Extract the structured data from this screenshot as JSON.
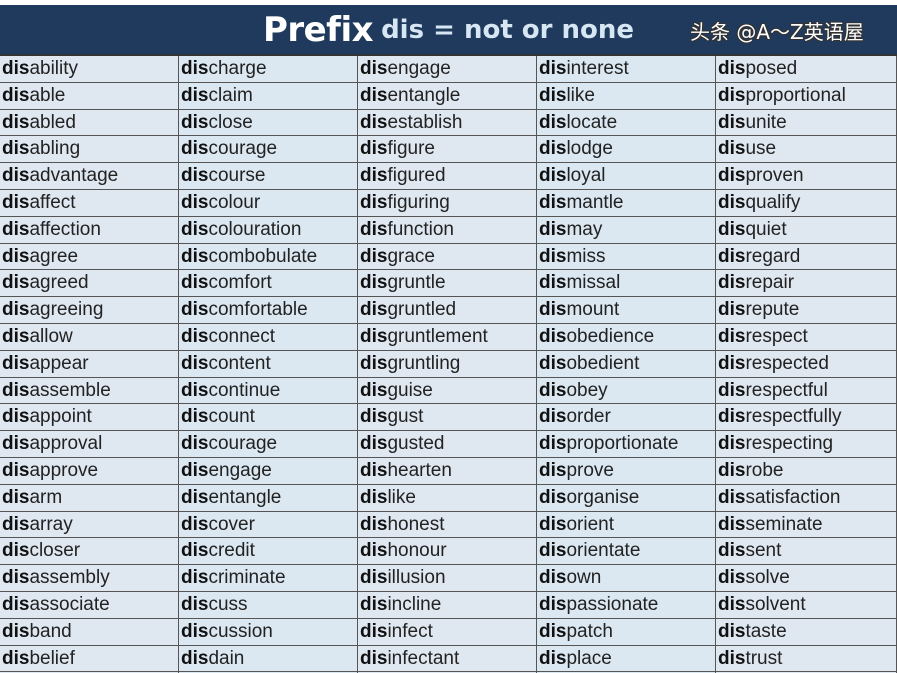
{
  "header": {
    "title_main": "Prefix",
    "title_sub": "dis = not or none"
  },
  "prefix": "dis",
  "columns": [
    [
      "ability",
      "able",
      "abled",
      "abling",
      "advantage",
      "affect",
      "affection",
      "agree",
      "agreed",
      "agreeing",
      "allow",
      "appear",
      "assemble",
      "appoint",
      "approval",
      "approve",
      "arm",
      "array",
      "closer",
      "assembly",
      "associate",
      "band",
      "belief"
    ],
    [
      "charge",
      "claim",
      "close",
      "courage",
      "course",
      "colour",
      "colouration",
      "combobulate",
      "comfort",
      "comfortable",
      "connect",
      "content",
      "continue",
      "count",
      "courage",
      "engage",
      "entangle",
      "cover",
      "credit",
      "criminate",
      "cuss",
      "cussion",
      "dain"
    ],
    [
      "engage",
      "entangle",
      "establish",
      "figure",
      "figured",
      "figuring",
      "function",
      "grace",
      "gruntle",
      "gruntled",
      "gruntlement",
      "gruntling",
      "guise",
      "gust",
      "gusted",
      "hearten",
      "like",
      "honest",
      "honour",
      "illusion",
      "incline",
      "infect",
      "infectant"
    ],
    [
      "interest",
      "like",
      "locate",
      "lodge",
      "loyal",
      "mantle",
      "may",
      "miss",
      "missal",
      "mount",
      "obedience",
      "obedient",
      "obey",
      "order",
      "proportionate",
      "prove",
      "organise",
      "orient",
      "orientate",
      "own",
      "passionate",
      "patch",
      "place"
    ],
    [
      "posed",
      "proportional",
      "unite",
      "use",
      "proven",
      "qualify",
      "quiet",
      "regard",
      "repair",
      "repute",
      "respect",
      "respected",
      "respectful",
      "respectfully",
      "respecting",
      "robe",
      "satisfaction",
      "seminate",
      "sent",
      "solve",
      "solvent",
      "taste",
      "trust"
    ]
  ],
  "watermark": "头条 @A～Z英语屋"
}
